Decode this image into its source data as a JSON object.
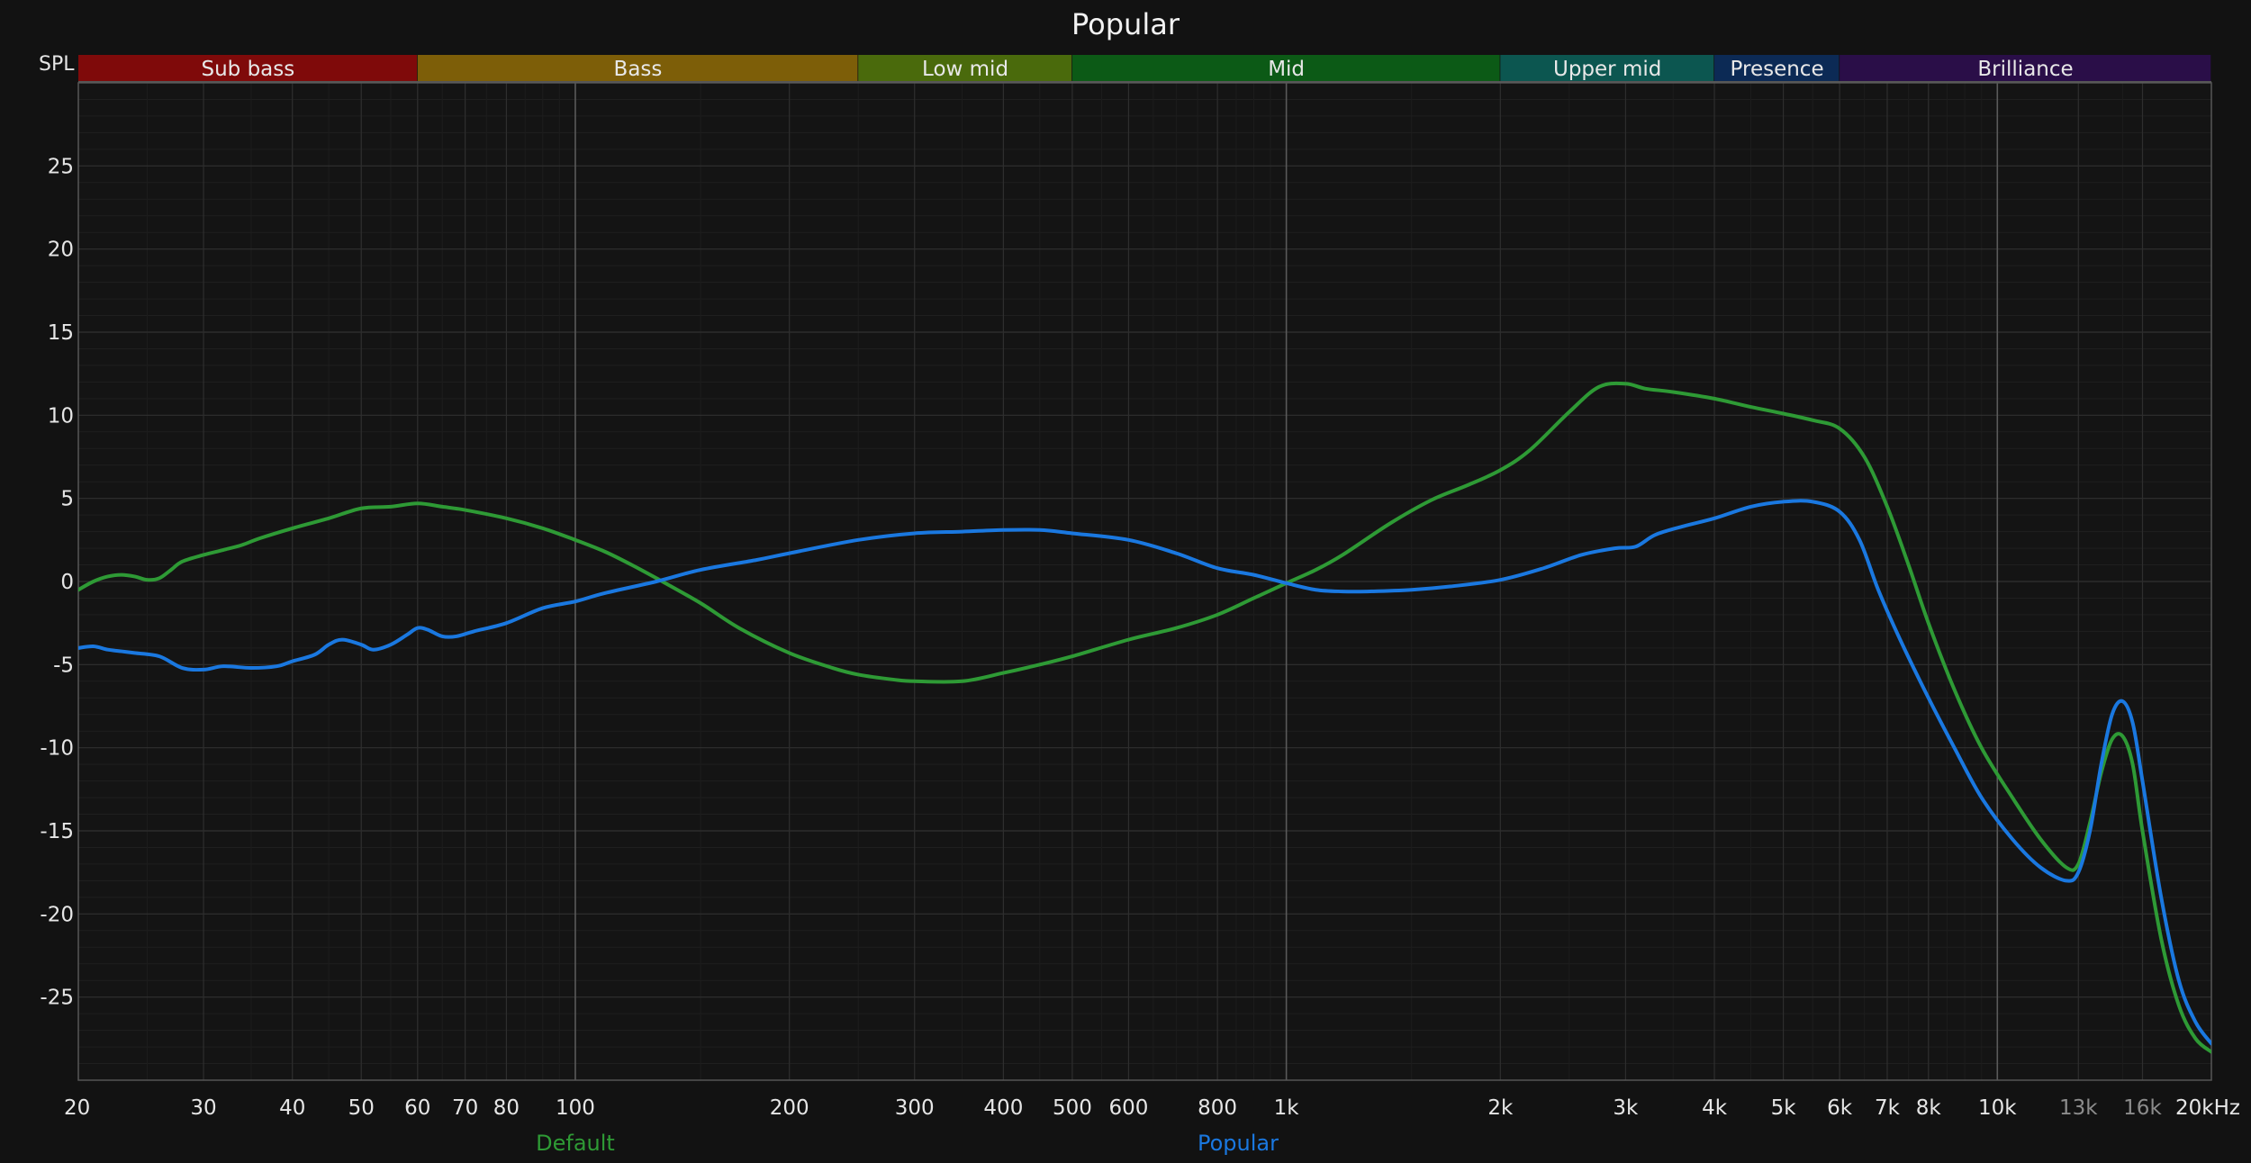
{
  "chart_data": {
    "type": "line",
    "title": "Popular",
    "ylabel": "SPL",
    "x_scale": "log",
    "xlim": [
      20,
      20000
    ],
    "ylim": [
      -30,
      30
    ],
    "grid": true,
    "x_ticks": [
      {
        "v": 20,
        "label": "20"
      },
      {
        "v": 30,
        "label": "30"
      },
      {
        "v": 40,
        "label": "40"
      },
      {
        "v": 50,
        "label": "50"
      },
      {
        "v": 60,
        "label": "60"
      },
      {
        "v": 70,
        "label": "70"
      },
      {
        "v": 80,
        "label": "80"
      },
      {
        "v": 100,
        "label": "100"
      },
      {
        "v": 200,
        "label": "200"
      },
      {
        "v": 300,
        "label": "300"
      },
      {
        "v": 400,
        "label": "400"
      },
      {
        "v": 500,
        "label": "500"
      },
      {
        "v": 600,
        "label": "600"
      },
      {
        "v": 800,
        "label": "800"
      },
      {
        "v": 1000,
        "label": "1k"
      },
      {
        "v": 2000,
        "label": "2k"
      },
      {
        "v": 3000,
        "label": "3k"
      },
      {
        "v": 4000,
        "label": "4k"
      },
      {
        "v": 5000,
        "label": "5k"
      },
      {
        "v": 6000,
        "label": "6k"
      },
      {
        "v": 7000,
        "label": "7k"
      },
      {
        "v": 8000,
        "label": "8k"
      },
      {
        "v": 10000,
        "label": "10k"
      },
      {
        "v": 13000,
        "label": "13k",
        "dim": true
      },
      {
        "v": 16000,
        "label": "16k",
        "dim": true
      },
      {
        "v": 20000,
        "label": "20kHz"
      }
    ],
    "y_ticks": [
      25,
      20,
      15,
      10,
      5,
      0,
      -5,
      -10,
      -15,
      -20,
      -25
    ],
    "bands": [
      {
        "name": "Sub bass",
        "from": 20,
        "to": 60,
        "color": "#7f0a0a"
      },
      {
        "name": "Bass",
        "from": 60,
        "to": 250,
        "color": "#7d5e08"
      },
      {
        "name": "Low mid",
        "from": 250,
        "to": 500,
        "color": "#4a6a0c"
      },
      {
        "name": "Mid",
        "from": 500,
        "to": 2000,
        "color": "#0c5a16"
      },
      {
        "name": "Upper mid",
        "from": 2000,
        "to": 4000,
        "color": "#0c5650"
      },
      {
        "name": "Presence",
        "from": 4000,
        "to": 6000,
        "color": "#0c2a55"
      },
      {
        "name": "Brilliance",
        "from": 6000,
        "to": 20000,
        "color": "#2a0e48"
      }
    ],
    "series": [
      {
        "name": "Default",
        "color": "#2e9a35",
        "points": [
          [
            20,
            -0.5
          ],
          [
            21,
            0
          ],
          [
            22,
            0.3
          ],
          [
            23,
            0.4
          ],
          [
            24,
            0.3
          ],
          [
            25,
            0.1
          ],
          [
            26,
            0.2
          ],
          [
            27,
            0.7
          ],
          [
            28,
            1.2
          ],
          [
            30,
            1.6
          ],
          [
            32,
            1.9
          ],
          [
            34,
            2.2
          ],
          [
            36,
            2.6
          ],
          [
            40,
            3.2
          ],
          [
            45,
            3.8
          ],
          [
            50,
            4.4
          ],
          [
            55,
            4.5
          ],
          [
            60,
            4.7
          ],
          [
            65,
            4.5
          ],
          [
            70,
            4.3
          ],
          [
            80,
            3.8
          ],
          [
            90,
            3.2
          ],
          [
            100,
            2.5
          ],
          [
            110,
            1.8
          ],
          [
            120,
            1.0
          ],
          [
            130,
            0.2
          ],
          [
            150,
            -1.3
          ],
          [
            170,
            -2.8
          ],
          [
            200,
            -4.3
          ],
          [
            230,
            -5.2
          ],
          [
            250,
            -5.6
          ],
          [
            280,
            -5.9
          ],
          [
            300,
            -6.0
          ],
          [
            350,
            -6.0
          ],
          [
            400,
            -5.5
          ],
          [
            450,
            -5.0
          ],
          [
            500,
            -4.5
          ],
          [
            600,
            -3.5
          ],
          [
            700,
            -2.8
          ],
          [
            800,
            -2.0
          ],
          [
            900,
            -1.0
          ],
          [
            1000,
            -0.1
          ],
          [
            1100,
            0.7
          ],
          [
            1200,
            1.6
          ],
          [
            1400,
            3.5
          ],
          [
            1600,
            4.9
          ],
          [
            1800,
            5.8
          ],
          [
            2000,
            6.7
          ],
          [
            2200,
            7.9
          ],
          [
            2500,
            10.2
          ],
          [
            2750,
            11.7
          ],
          [
            3000,
            11.9
          ],
          [
            3200,
            11.6
          ],
          [
            3500,
            11.4
          ],
          [
            4000,
            11.0
          ],
          [
            4500,
            10.5
          ],
          [
            5000,
            10.1
          ],
          [
            5500,
            9.7
          ],
          [
            6000,
            9.2
          ],
          [
            6500,
            7.5
          ],
          [
            7000,
            4.5
          ],
          [
            7500,
            1.0
          ],
          [
            8000,
            -2.5
          ],
          [
            8700,
            -6.5
          ],
          [
            9500,
            -10.0
          ],
          [
            10500,
            -13.0
          ],
          [
            11500,
            -15.5
          ],
          [
            12500,
            -17.2
          ],
          [
            13000,
            -17.0
          ],
          [
            13500,
            -14.5
          ],
          [
            14000,
            -11.5
          ],
          [
            14500,
            -9.5
          ],
          [
            15000,
            -9.3
          ],
          [
            15500,
            -11.0
          ],
          [
            16000,
            -15.0
          ],
          [
            17000,
            -21.5
          ],
          [
            18000,
            -25.5
          ],
          [
            19000,
            -27.5
          ],
          [
            20000,
            -28.3
          ]
        ]
      },
      {
        "name": "Popular",
        "color": "#1a78e0",
        "points": [
          [
            20,
            -4.0
          ],
          [
            21,
            -3.9
          ],
          [
            22,
            -4.1
          ],
          [
            23,
            -4.2
          ],
          [
            24,
            -4.3
          ],
          [
            26,
            -4.5
          ],
          [
            28,
            -5.2
          ],
          [
            30,
            -5.3
          ],
          [
            32,
            -5.1
          ],
          [
            35,
            -5.2
          ],
          [
            38,
            -5.1
          ],
          [
            40,
            -4.8
          ],
          [
            43,
            -4.4
          ],
          [
            45,
            -3.8
          ],
          [
            47,
            -3.5
          ],
          [
            50,
            -3.8
          ],
          [
            52,
            -4.1
          ],
          [
            55,
            -3.8
          ],
          [
            58,
            -3.2
          ],
          [
            60,
            -2.8
          ],
          [
            62,
            -2.9
          ],
          [
            65,
            -3.3
          ],
          [
            68,
            -3.3
          ],
          [
            72,
            -3.0
          ],
          [
            80,
            -2.5
          ],
          [
            90,
            -1.6
          ],
          [
            100,
            -1.2
          ],
          [
            110,
            -0.7
          ],
          [
            130,
            0.0
          ],
          [
            150,
            0.7
          ],
          [
            180,
            1.3
          ],
          [
            200,
            1.7
          ],
          [
            250,
            2.5
          ],
          [
            300,
            2.9
          ],
          [
            350,
            3.0
          ],
          [
            400,
            3.1
          ],
          [
            450,
            3.1
          ],
          [
            500,
            2.9
          ],
          [
            600,
            2.5
          ],
          [
            700,
            1.7
          ],
          [
            800,
            0.8
          ],
          [
            900,
            0.4
          ],
          [
            1000,
            -0.1
          ],
          [
            1100,
            -0.5
          ],
          [
            1200,
            -0.6
          ],
          [
            1300,
            -0.6
          ],
          [
            1500,
            -0.5
          ],
          [
            1700,
            -0.3
          ],
          [
            2000,
            0.1
          ],
          [
            2300,
            0.8
          ],
          [
            2600,
            1.6
          ],
          [
            2900,
            2.0
          ],
          [
            3100,
            2.1
          ],
          [
            3300,
            2.8
          ],
          [
            3600,
            3.3
          ],
          [
            4000,
            3.8
          ],
          [
            4500,
            4.5
          ],
          [
            5000,
            4.8
          ],
          [
            5500,
            4.8
          ],
          [
            6000,
            4.2
          ],
          [
            6400,
            2.5
          ],
          [
            6800,
            -0.5
          ],
          [
            7300,
            -3.5
          ],
          [
            8000,
            -7.0
          ],
          [
            8700,
            -10.0
          ],
          [
            9500,
            -13.0
          ],
          [
            10500,
            -15.5
          ],
          [
            11500,
            -17.2
          ],
          [
            12500,
            -18.0
          ],
          [
            13000,
            -17.5
          ],
          [
            13500,
            -15.0
          ],
          [
            14000,
            -11.0
          ],
          [
            14500,
            -8.0
          ],
          [
            15000,
            -7.2
          ],
          [
            15500,
            -8.5
          ],
          [
            16000,
            -12.0
          ],
          [
            17000,
            -19.0
          ],
          [
            18000,
            -24.0
          ],
          [
            19000,
            -26.5
          ],
          [
            20000,
            -27.8
          ]
        ]
      }
    ]
  }
}
